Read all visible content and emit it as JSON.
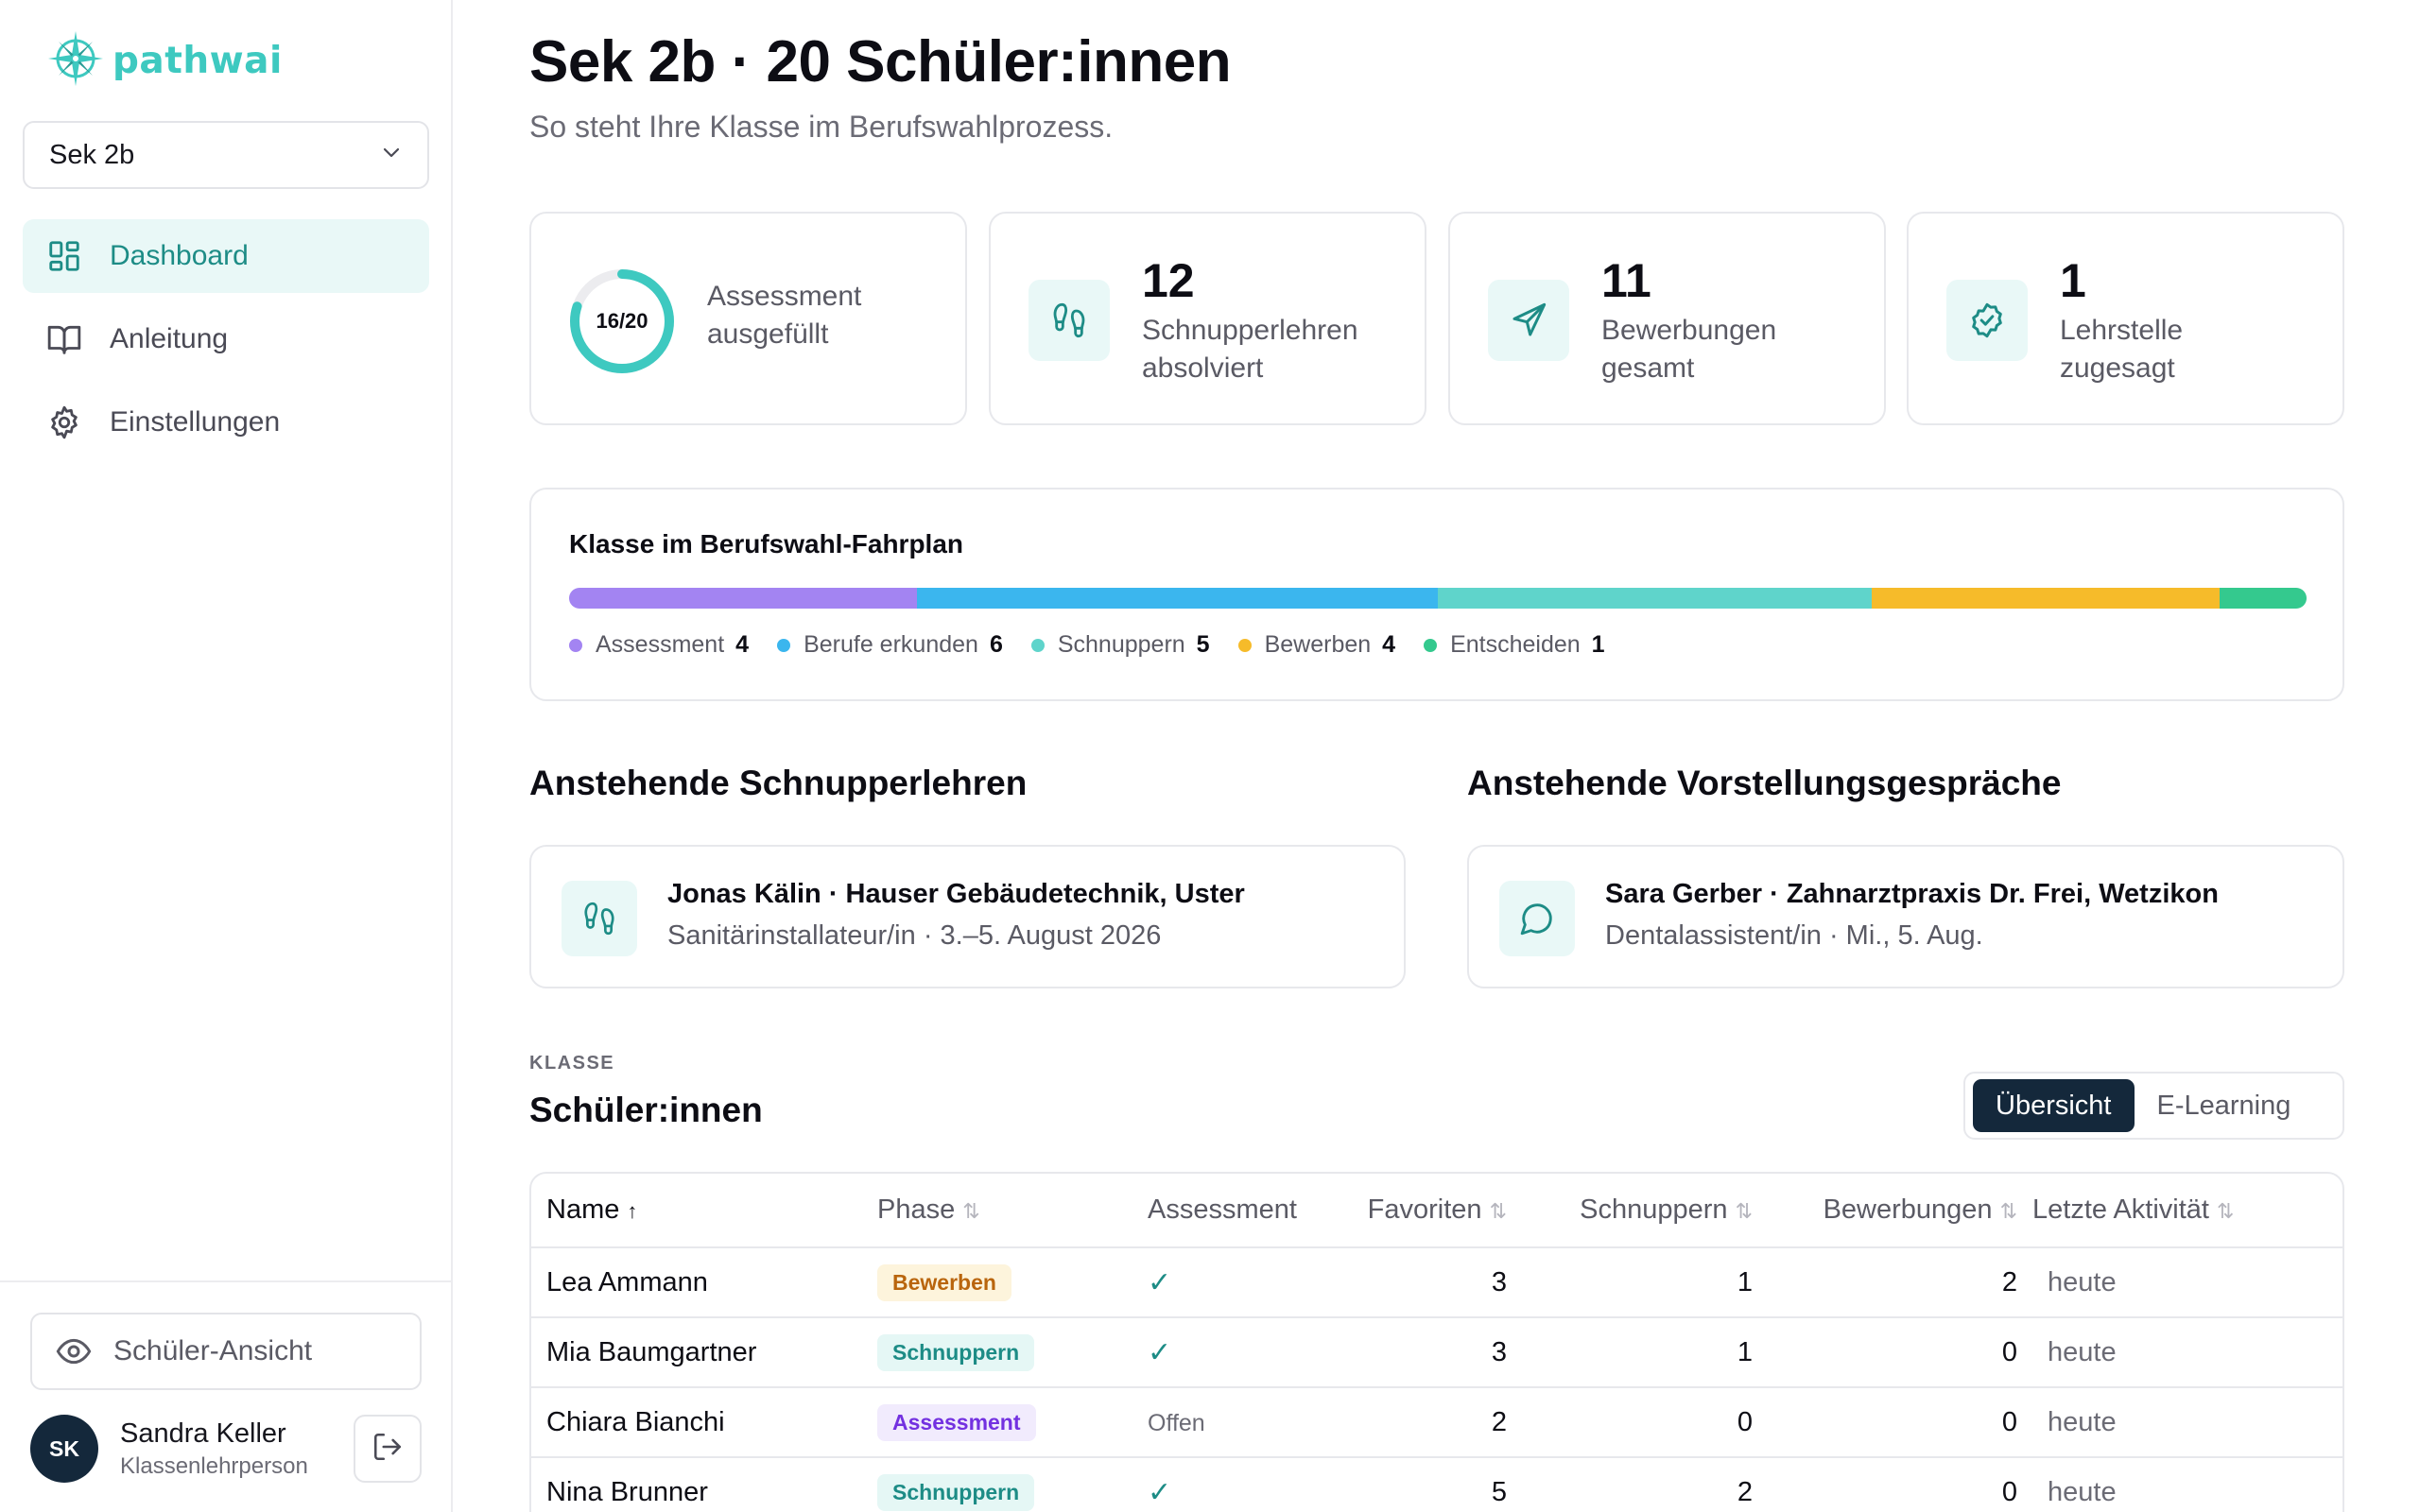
{
  "brand": {
    "name": "pathwai",
    "color": "#3ec9c0"
  },
  "sidebar": {
    "class_select": {
      "value": "Sek 2b"
    },
    "nav": [
      {
        "label": "Dashboard",
        "icon": "dashboard-icon",
        "active": true
      },
      {
        "label": "Anleitung",
        "icon": "book-icon",
        "active": false
      },
      {
        "label": "Einstellungen",
        "icon": "gear-icon",
        "active": false
      }
    ],
    "student_view_label": "Schüler-Ansicht",
    "user": {
      "initials": "SK",
      "name": "Sandra Keller",
      "role": "Klassenlehrperson"
    }
  },
  "header": {
    "title": "Sek 2b · 20 Schüler:innen",
    "subtitle": "So steht Ihre Klasse im Berufswahlprozess."
  },
  "stats": {
    "assessment": {
      "ring_text": "16/20",
      "done": 16,
      "total": 20,
      "label_line1": "Assessment",
      "label_line2": "ausgefüllt"
    },
    "schnupper": {
      "value": "12",
      "label_line1": "Schnupperlehren",
      "label_line2": "absolviert",
      "icon": "footprints-icon"
    },
    "bewerbungen": {
      "value": "11",
      "label_line1": "Bewerbungen",
      "label_line2": "gesamt",
      "icon": "send-icon"
    },
    "lehrstelle": {
      "value": "1",
      "label_line1": "Lehrstelle",
      "label_line2": "zugesagt",
      "icon": "badge-check-icon"
    }
  },
  "roadmap": {
    "title": "Klasse im Berufswahl-Fahrplan",
    "phases": [
      {
        "label": "Assessment",
        "count": 4,
        "color": "#a384f2"
      },
      {
        "label": "Berufe erkunden",
        "count": 6,
        "color": "#3bb6ee"
      },
      {
        "label": "Schnuppern",
        "count": 5,
        "color": "#5fd4cb"
      },
      {
        "label": "Bewerben",
        "count": 4,
        "color": "#f6bb2a"
      },
      {
        "label": "Entscheiden",
        "count": 1,
        "color": "#34c98e"
      }
    ]
  },
  "upcoming_schnupper": {
    "title": "Anstehende Schnupperlehren",
    "item": {
      "title": "Jonas Kälin · Hauser Gebäudetechnik, Uster",
      "sub": "Sanitärinstallateur/in · 3.–5. August 2026"
    }
  },
  "upcoming_interviews": {
    "title": "Anstehende Vorstellungsgespräche",
    "item": {
      "title": "Sara Gerber · Zahnarztpraxis Dr. Frei, Wetzikon",
      "sub": "Dentalassistent/in · Mi., 5. Aug."
    }
  },
  "class_section": {
    "eyebrow": "KLASSE",
    "title": "Schüler:innen",
    "toggle": [
      {
        "label": "Übersicht",
        "active": true
      },
      {
        "label": "E-Learning",
        "active": false
      }
    ]
  },
  "table": {
    "columns": {
      "name": "Name",
      "phase": "Phase",
      "assessment": "Assessment",
      "favoriten": "Favoriten",
      "schnuppern": "Schnuppern",
      "bewerbungen": "Bewerbungen",
      "activity": "Letzte Aktivität"
    },
    "rows": [
      {
        "name": "Lea Ammann",
        "phase": "Bewerben",
        "assessment": "done",
        "assessment_text": "✓",
        "favoriten": "3",
        "schnuppern": "1",
        "bewerbungen": "2",
        "activity": "heute"
      },
      {
        "name": "Mia Baumgartner",
        "phase": "Schnuppern",
        "assessment": "done",
        "assessment_text": "✓",
        "favoriten": "3",
        "schnuppern": "1",
        "bewerbungen": "0",
        "activity": "heute"
      },
      {
        "name": "Chiara Bianchi",
        "phase": "Assessment",
        "assessment": "open",
        "assessment_text": "Offen",
        "favoriten": "2",
        "schnuppern": "0",
        "bewerbungen": "0",
        "activity": "heute"
      },
      {
        "name": "Nina Brunner",
        "phase": "Schnuppern",
        "assessment": "done",
        "assessment_text": "✓",
        "favoriten": "5",
        "schnuppern": "2",
        "bewerbungen": "0",
        "activity": "heute"
      }
    ],
    "phase_colors": {
      "Bewerben": {
        "bg": "#fdf4dc",
        "fg": "#b9650d"
      },
      "Schnuppern": {
        "bg": "#e5f7f5",
        "fg": "#1d8c86"
      },
      "Assessment": {
        "bg": "#f1ebfd",
        "fg": "#7331e0"
      }
    }
  }
}
